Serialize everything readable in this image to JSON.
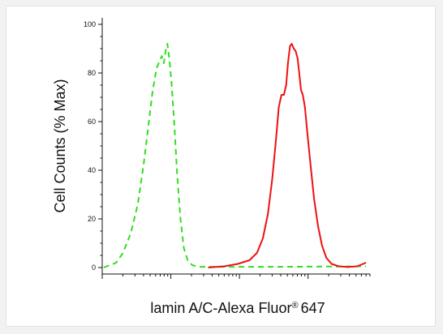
{
  "chart_data": {
    "type": "line",
    "title": "",
    "xlabel": "lamin A/C-Alexa Fluor",
    "xlabel_mark": "®",
    "xlabel_suffix": "647",
    "ylabel": "Cell Counts (% Max)",
    "xscale": "log",
    "xlim": [
      1,
      8000
    ],
    "ylim": [
      0,
      100
    ],
    "yticks": [
      0,
      20,
      40,
      60,
      80,
      100
    ],
    "grid": false,
    "legend": "none",
    "series": [
      {
        "color": "#33dd22",
        "style": "dashed",
        "points": [
          [
            1.05,
            0
          ],
          [
            1.3,
            1
          ],
          [
            1.6,
            2
          ],
          [
            2.0,
            6
          ],
          [
            2.6,
            14
          ],
          [
            3.3,
            26
          ],
          [
            4.0,
            42
          ],
          [
            4.7,
            58
          ],
          [
            5.4,
            72
          ],
          [
            6.2,
            82
          ],
          [
            6.9,
            85
          ],
          [
            7.4,
            87
          ],
          [
            7.9,
            84
          ],
          [
            8.4,
            89
          ],
          [
            8.9,
            92
          ],
          [
            9.5,
            86
          ],
          [
            10.3,
            75
          ],
          [
            11.3,
            58
          ],
          [
            12.4,
            38
          ],
          [
            13.8,
            20
          ],
          [
            15.5,
            8
          ],
          [
            17.6,
            3
          ],
          [
            20.5,
            1
          ],
          [
            25,
            0.3
          ],
          [
            400,
            0.3
          ],
          [
            7000,
            0.5
          ]
        ]
      },
      {
        "color": "#ee1111",
        "style": "solid",
        "points": [
          [
            35,
            0
          ],
          [
            60,
            0.5
          ],
          [
            95,
            1.5
          ],
          [
            140,
            3
          ],
          [
            180,
            6
          ],
          [
            220,
            12
          ],
          [
            260,
            22
          ],
          [
            300,
            36
          ],
          [
            340,
            52
          ],
          [
            375,
            66
          ],
          [
            410,
            71
          ],
          [
            445,
            71
          ],
          [
            480,
            75
          ],
          [
            510,
            84
          ],
          [
            545,
            91
          ],
          [
            580,
            92
          ],
          [
            620,
            90
          ],
          [
            660,
            89
          ],
          [
            705,
            86
          ],
          [
            745,
            80
          ],
          [
            790,
            73
          ],
          [
            840,
            71
          ],
          [
            900,
            66
          ],
          [
            980,
            55
          ],
          [
            1090,
            42
          ],
          [
            1230,
            28
          ],
          [
            1400,
            17
          ],
          [
            1600,
            9
          ],
          [
            1850,
            4
          ],
          [
            2200,
            1.5
          ],
          [
            2800,
            0.5
          ],
          [
            3800,
            0.2
          ],
          [
            5200,
            0.5
          ],
          [
            7000,
            2
          ]
        ]
      }
    ]
  }
}
